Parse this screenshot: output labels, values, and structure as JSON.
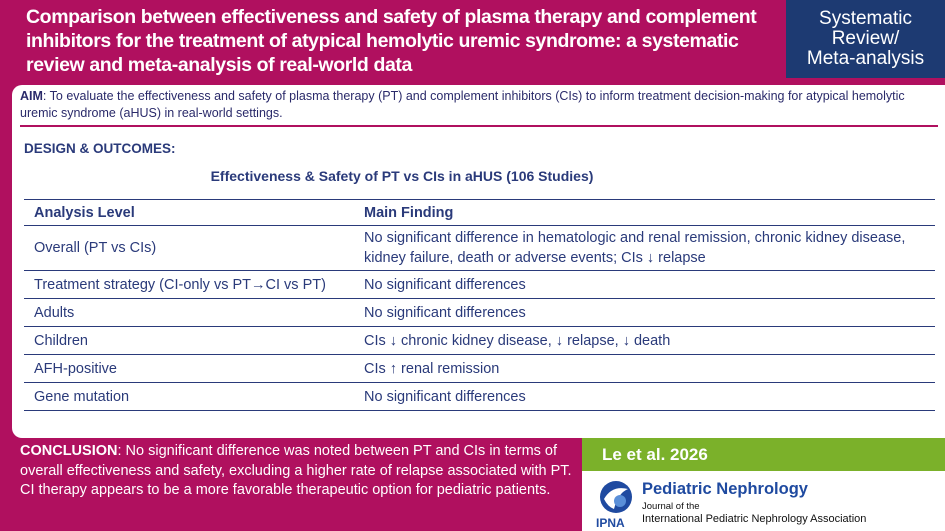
{
  "header": {
    "title": "Comparison between effectiveness and safety of plasma therapy and complement inhibitors for the treatment of atypical hemolytic uremic syndrome: a systematic review and meta-analysis of real-world data",
    "type_lines": [
      "Systematic",
      "Review/",
      "Meta-analysis"
    ]
  },
  "aim": {
    "label": "AIM",
    "text": ": To evaluate the effectiveness and safety of plasma therapy (PT) and complement inhibitors (CIs) to inform treatment decision-making for atypical hemolytic uremic syndrome  (aHUS) in real-world settings."
  },
  "design": {
    "label": "DESIGN & OUTCOMES:",
    "table_title": "Effectiveness & Safety of PT vs CIs in aHUS (106 Studies)",
    "columns": [
      "Analysis Level",
      "Main Finding"
    ],
    "rows": [
      {
        "level": "Overall (PT vs CIs)",
        "finding": "No significant difference in hematologic and renal remission, chronic kidney disease, kidney failure, death or adverse events; CIs ↓ relapse"
      },
      {
        "level": "Treatment strategy (CI-only vs PT→CI vs PT)",
        "finding": "No significant differences"
      },
      {
        "level": "Adults",
        "finding": "No significant differences"
      },
      {
        "level": "Children",
        "finding": "CIs ↓ chronic kidney disease, ↓ relapse, ↓ death"
      },
      {
        "level": "AFH-positive",
        "finding": "CIs ↑ renal remission"
      },
      {
        "level": "Gene mutation",
        "finding": "No significant differences"
      }
    ]
  },
  "conclusion": {
    "label": "CONCLUSION",
    "text": ": No significant difference was noted between PT and CIs in terms of overall effectiveness and safety, excluding a higher rate of relapse associated with PT. CI therapy appears to be a more favorable therapeutic option for pediatric patients."
  },
  "citation": {
    "author": "Le et al. 2026",
    "journal_name": "Pediatric Nephrology",
    "journal_of": "Journal of the",
    "association": "International Pediatric Nephrology Association",
    "logo_text": "IPNA"
  },
  "colors": {
    "brand_magenta": "#b0105f",
    "navy": "#1d3a72",
    "green": "#7bb12a",
    "text_blue": "#2a3a7a"
  }
}
